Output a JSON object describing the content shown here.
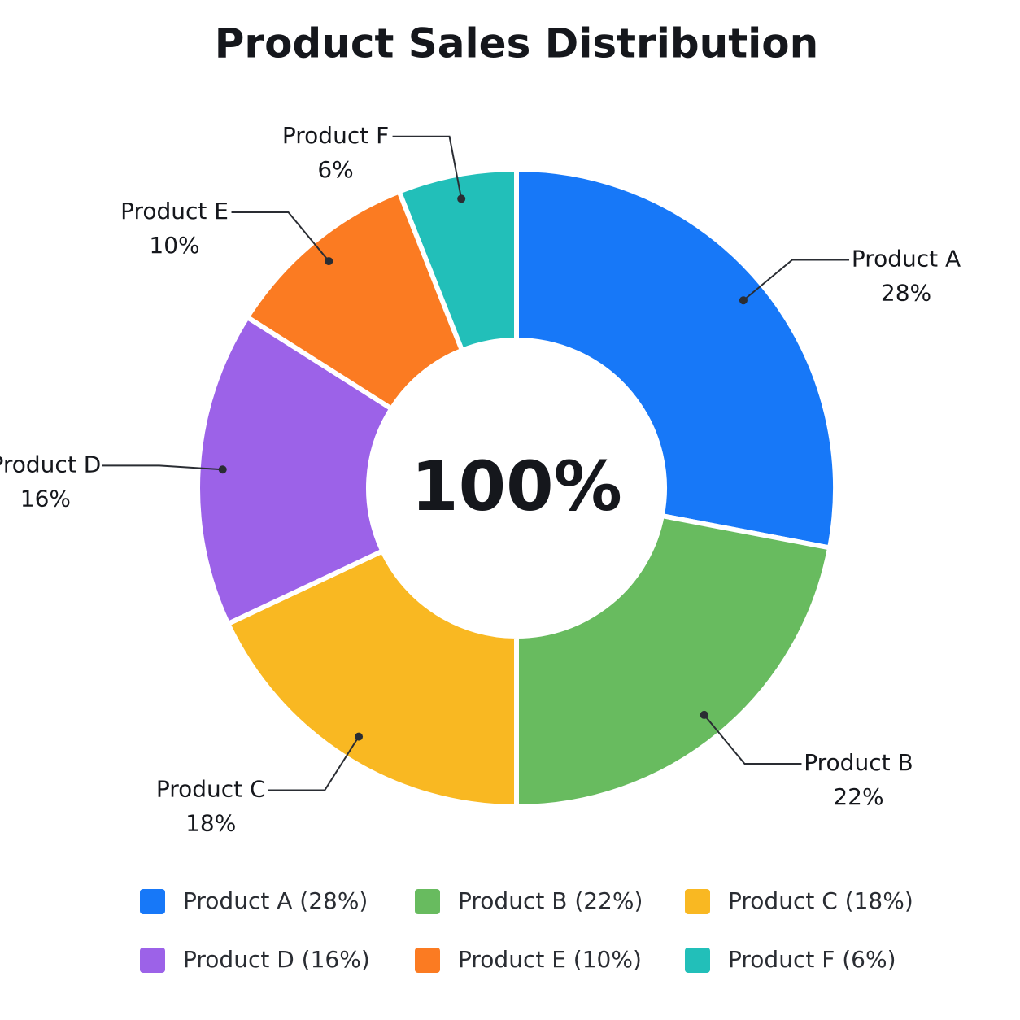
{
  "chart_data": {
    "type": "donut",
    "title": "Product Sales Distribution",
    "center_label": "100%",
    "categories": [
      "Product A",
      "Product B",
      "Product C",
      "Product D",
      "Product E",
      "Product F"
    ],
    "values": [
      28,
      22,
      18,
      16,
      10,
      6
    ],
    "value_labels": [
      "28%",
      "22%",
      "18%",
      "16%",
      "10%",
      "6%"
    ],
    "colors": [
      "#1778f8",
      "#68bb5f",
      "#f9b822",
      "#9c62e8",
      "#fb7b22",
      "#22bfb9"
    ],
    "legend_labels": [
      "Product A (28%)",
      "Product B (22%)",
      "Product C (18%)",
      "Product D (16%)",
      "Product E (10%)",
      "Product F (6%)"
    ]
  }
}
